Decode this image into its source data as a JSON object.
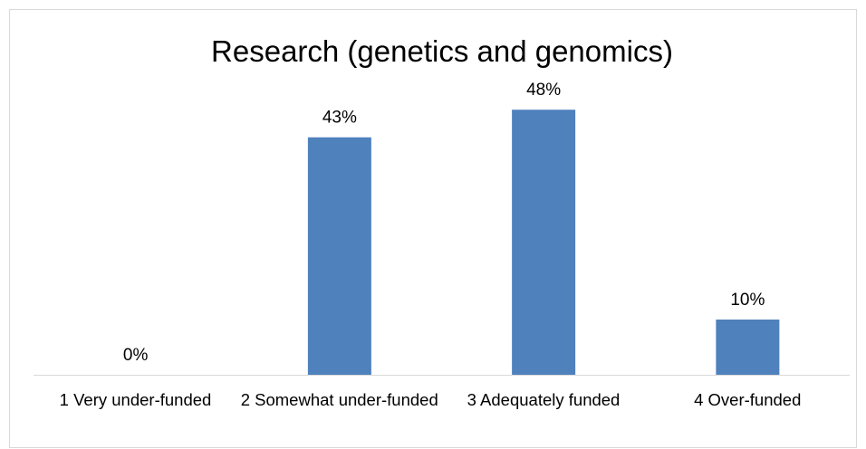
{
  "chart_data": {
    "type": "bar",
    "title": "Research (genetics and genomics)",
    "categories": [
      "1 Very under-funded",
      "2 Somewhat under-funded",
      "3 Adequately funded",
      "4 Over-funded"
    ],
    "values": [
      0,
      43,
      48,
      10
    ],
    "value_labels": [
      "0%",
      "43%",
      "48%",
      "10%"
    ],
    "color": "#4f81bd"
  }
}
